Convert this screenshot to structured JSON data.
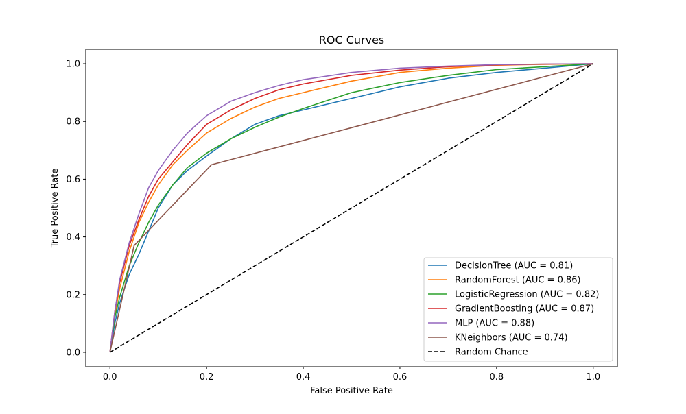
{
  "chart_data": {
    "type": "line",
    "title": "ROC Curves",
    "xlabel": "False Positive Rate",
    "ylabel": "True Positive Rate",
    "xlim": [
      -0.05,
      1.05
    ],
    "ylim": [
      -0.05,
      1.05
    ],
    "xticks": [
      0.0,
      0.2,
      0.4,
      0.6,
      0.8,
      1.0
    ],
    "yticks": [
      0.0,
      0.2,
      0.4,
      0.6,
      0.8,
      1.0
    ],
    "xtick_labels": [
      "0.0",
      "0.2",
      "0.4",
      "0.6",
      "0.8",
      "1.0"
    ],
    "ytick_labels": [
      "0.0",
      "0.2",
      "0.4",
      "0.6",
      "0.8",
      "1.0"
    ],
    "grid": false,
    "legend_position": "lower-right",
    "series": [
      {
        "name": "DecisionTree (AUC = 0.81)",
        "color": "#1f77b4",
        "style": "solid",
        "x": [
          0.0,
          0.01,
          0.02,
          0.04,
          0.06,
          0.08,
          0.1,
          0.13,
          0.16,
          0.2,
          0.25,
          0.3,
          0.35,
          0.4,
          0.5,
          0.6,
          0.7,
          0.8,
          0.9,
          1.0
        ],
        "y": [
          0.0,
          0.1,
          0.17,
          0.27,
          0.34,
          0.42,
          0.5,
          0.58,
          0.63,
          0.68,
          0.74,
          0.79,
          0.82,
          0.84,
          0.88,
          0.92,
          0.95,
          0.97,
          0.985,
          1.0
        ]
      },
      {
        "name": "RandomForest (AUC = 0.86)",
        "color": "#ff7f0e",
        "style": "solid",
        "x": [
          0.0,
          0.01,
          0.02,
          0.04,
          0.06,
          0.08,
          0.1,
          0.13,
          0.16,
          0.2,
          0.25,
          0.3,
          0.35,
          0.4,
          0.5,
          0.6,
          0.7,
          0.8,
          0.9,
          1.0
        ],
        "y": [
          0.0,
          0.13,
          0.22,
          0.35,
          0.45,
          0.52,
          0.58,
          0.65,
          0.7,
          0.76,
          0.81,
          0.85,
          0.88,
          0.9,
          0.94,
          0.97,
          0.985,
          0.995,
          0.998,
          1.0
        ]
      },
      {
        "name": "LogisticRegression (AUC = 0.82)",
        "color": "#2ca02c",
        "style": "solid",
        "x": [
          0.0,
          0.01,
          0.02,
          0.04,
          0.06,
          0.08,
          0.1,
          0.13,
          0.16,
          0.2,
          0.25,
          0.3,
          0.35,
          0.4,
          0.5,
          0.6,
          0.7,
          0.8,
          0.9,
          1.0
        ],
        "y": [
          0.0,
          0.12,
          0.19,
          0.3,
          0.38,
          0.45,
          0.51,
          0.58,
          0.64,
          0.69,
          0.74,
          0.78,
          0.815,
          0.845,
          0.9,
          0.935,
          0.96,
          0.98,
          0.99,
          1.0
        ]
      },
      {
        "name": "GradientBoosting (AUC = 0.87)",
        "color": "#d62728",
        "style": "solid",
        "x": [
          0.0,
          0.01,
          0.02,
          0.04,
          0.06,
          0.08,
          0.1,
          0.13,
          0.16,
          0.2,
          0.25,
          0.3,
          0.35,
          0.4,
          0.5,
          0.6,
          0.7,
          0.8,
          0.9,
          1.0
        ],
        "y": [
          0.0,
          0.14,
          0.24,
          0.37,
          0.46,
          0.54,
          0.6,
          0.66,
          0.72,
          0.79,
          0.84,
          0.88,
          0.91,
          0.93,
          0.96,
          0.978,
          0.99,
          0.996,
          0.999,
          1.0
        ]
      },
      {
        "name": "MLP (AUC = 0.88)",
        "color": "#9467bd",
        "style": "solid",
        "x": [
          0.0,
          0.01,
          0.02,
          0.04,
          0.06,
          0.08,
          0.1,
          0.13,
          0.16,
          0.2,
          0.25,
          0.3,
          0.35,
          0.4,
          0.5,
          0.6,
          0.7,
          0.8,
          0.9,
          1.0
        ],
        "y": [
          0.0,
          0.14,
          0.25,
          0.38,
          0.48,
          0.57,
          0.63,
          0.7,
          0.76,
          0.82,
          0.87,
          0.9,
          0.925,
          0.945,
          0.97,
          0.985,
          0.992,
          0.997,
          0.999,
          1.0
        ]
      },
      {
        "name": "KNeighbors (AUC = 0.74)",
        "color": "#8c564b",
        "style": "solid",
        "x": [
          0.0,
          0.05,
          0.21,
          1.0
        ],
        "y": [
          0.0,
          0.37,
          0.65,
          1.0
        ]
      },
      {
        "name": "Random Chance",
        "color": "#000000",
        "style": "dashed",
        "x": [
          0.0,
          1.0
        ],
        "y": [
          0.0,
          1.0
        ]
      }
    ]
  }
}
